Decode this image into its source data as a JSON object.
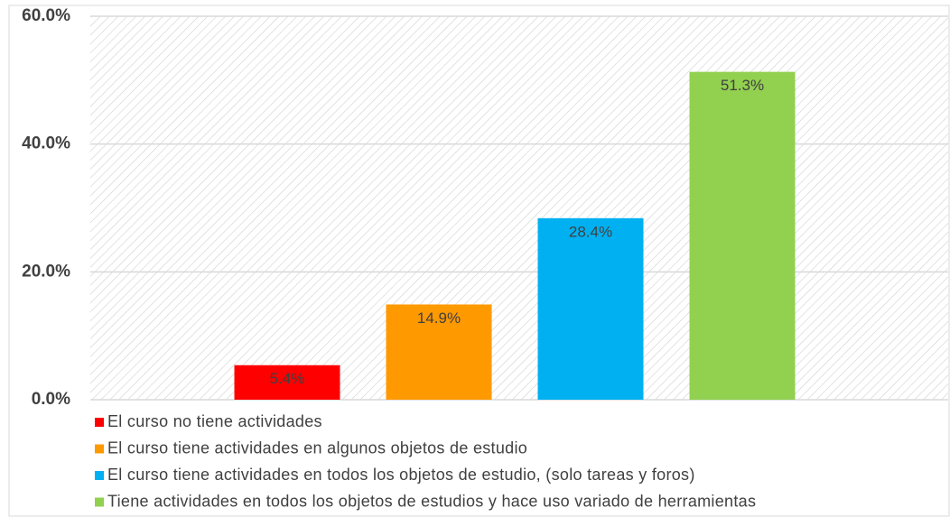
{
  "chart_data": {
    "type": "bar",
    "series": [
      {
        "name": "El curso no tiene actividades",
        "color": "#ff0000",
        "values": [
          5.4
        ],
        "value_labels": [
          "5.4%"
        ]
      },
      {
        "name": "El curso tiene actividades en algunos objetos de estudio",
        "color": "#ff9900",
        "values": [
          14.9
        ],
        "value_labels": [
          "14.9%"
        ]
      },
      {
        "name": "El curso tiene actividades en todos los objetos de estudio, (solo tareas y foros)",
        "color": "#00b0f0",
        "values": [
          28.4
        ],
        "value_labels": [
          "28.4%"
        ]
      },
      {
        "name": "Tiene actividades en todos los objetos de estudios y hace uso variado de herramientas",
        "color": "#92d050",
        "values": [
          51.3
        ],
        "value_labels": [
          "51.3%"
        ]
      }
    ],
    "ylim": [
      0,
      60
    ],
    "yticks": [
      {
        "value": 0,
        "label": "0.0%"
      },
      {
        "value": 20,
        "label": "20.0%"
      },
      {
        "value": 40,
        "label": "40.0%"
      },
      {
        "value": 60,
        "label": "60.0%"
      }
    ],
    "grid": true,
    "legend": "bottom"
  }
}
